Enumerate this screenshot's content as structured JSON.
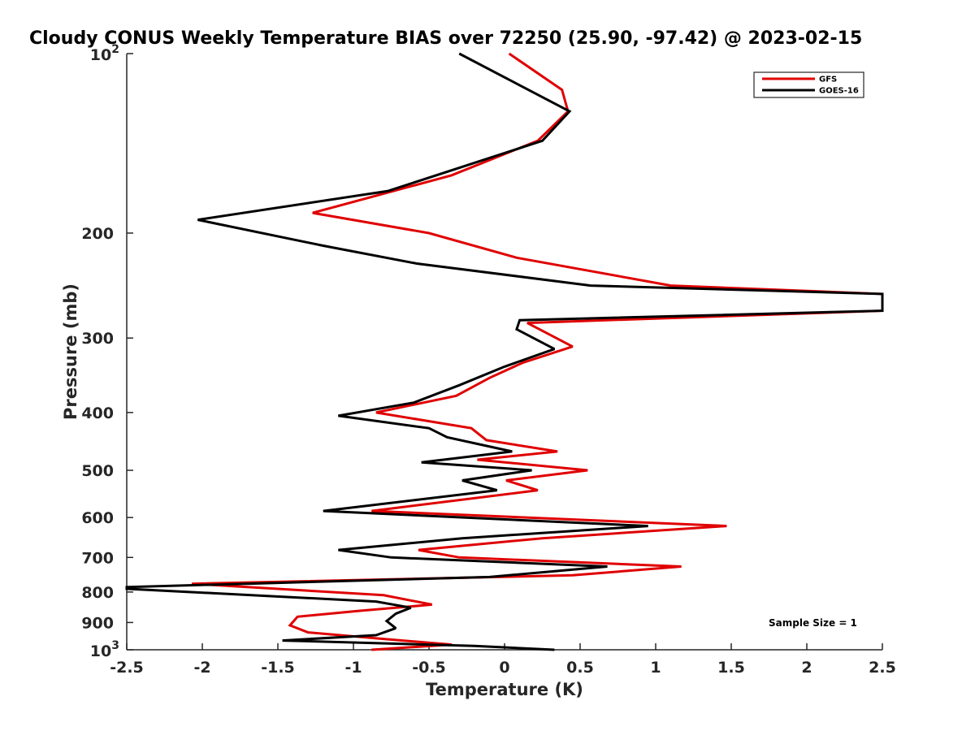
{
  "chart_data": {
    "type": "line",
    "title": "Cloudy CONUS Weekly Temperature BIAS over 72250 (25.90, -97.42) @ 2023-02-15",
    "xlabel": "Temperature (K)",
    "ylabel": "Pressure (mb)",
    "xlim": [
      -2.5,
      2.5
    ],
    "ylim": [
      100,
      1000
    ],
    "y_scale": "log",
    "y_reversed": true,
    "grid": false,
    "legend_position": "top-right",
    "x_ticks": [
      "-2.5",
      "-2",
      "-1.5",
      "-1",
      "-0.5",
      "0",
      "0.5",
      "1",
      "1.5",
      "2",
      "2.5"
    ],
    "y_ticks": [
      {
        "value": 100,
        "base": "10",
        "exp": "2"
      },
      {
        "value": 200,
        "base": "200",
        "exp": ""
      },
      {
        "value": 300,
        "base": "300",
        "exp": ""
      },
      {
        "value": 400,
        "base": "400",
        "exp": ""
      },
      {
        "value": 500,
        "base": "500",
        "exp": ""
      },
      {
        "value": 600,
        "base": "600",
        "exp": ""
      },
      {
        "value": 700,
        "base": "700",
        "exp": ""
      },
      {
        "value": 800,
        "base": "800",
        "exp": ""
      },
      {
        "value": 900,
        "base": "900",
        "exp": ""
      },
      {
        "value": 1000,
        "base": "10",
        "exp": "3"
      }
    ],
    "annotation": "Sample Size = 1",
    "series": [
      {
        "name": "GFS",
        "color": "#e00000",
        "points": [
          [
            0.03,
            100
          ],
          [
            0.38,
            115
          ],
          [
            0.42,
            125
          ],
          [
            0.22,
            140
          ],
          [
            -0.35,
            160
          ],
          [
            -1.27,
            185
          ],
          [
            -0.5,
            200
          ],
          [
            0.08,
            220
          ],
          [
            1.1,
            245
          ],
          [
            2.5,
            253
          ],
          [
            2.5,
            270
          ],
          [
            0.15,
            283
          ],
          [
            0.45,
            310
          ],
          [
            0.12,
            330
          ],
          [
            -0.1,
            350
          ],
          [
            -0.32,
            375
          ],
          [
            -0.85,
            400
          ],
          [
            -0.22,
            425
          ],
          [
            -0.12,
            445
          ],
          [
            0.35,
            465
          ],
          [
            -0.18,
            480
          ],
          [
            0.55,
            500
          ],
          [
            0.01,
            520
          ],
          [
            0.22,
            540
          ],
          [
            -0.88,
            585
          ],
          [
            1.47,
            620
          ],
          [
            0.25,
            650
          ],
          [
            -0.57,
            680
          ],
          [
            -0.3,
            700
          ],
          [
            1.17,
            725
          ],
          [
            0.45,
            750
          ],
          [
            -2.07,
            775
          ],
          [
            -0.8,
            810
          ],
          [
            -0.48,
            840
          ],
          [
            -0.95,
            860
          ],
          [
            -1.37,
            880
          ],
          [
            -1.42,
            910
          ],
          [
            -1.3,
            935
          ],
          [
            -0.78,
            960
          ],
          [
            -0.35,
            980
          ],
          [
            -0.88,
            1000
          ]
        ]
      },
      {
        "name": "GOES-16",
        "color": "#000000",
        "points": [
          [
            -0.3,
            100
          ],
          [
            0.43,
            125
          ],
          [
            0.25,
            140
          ],
          [
            -0.77,
            170
          ],
          [
            -2.03,
            190
          ],
          [
            -1.2,
            210
          ],
          [
            -0.58,
            225
          ],
          [
            0.57,
            245
          ],
          [
            2.5,
            253
          ],
          [
            2.5,
            270
          ],
          [
            0.1,
            280
          ],
          [
            0.08,
            290
          ],
          [
            0.33,
            313
          ],
          [
            0.0,
            335
          ],
          [
            -0.3,
            360
          ],
          [
            -0.6,
            385
          ],
          [
            -1.1,
            405
          ],
          [
            -0.5,
            425
          ],
          [
            -0.38,
            440
          ],
          [
            0.05,
            465
          ],
          [
            -0.55,
            485
          ],
          [
            0.18,
            500
          ],
          [
            -0.28,
            520
          ],
          [
            -0.05,
            540
          ],
          [
            -1.2,
            585
          ],
          [
            0.95,
            620
          ],
          [
            -0.28,
            650
          ],
          [
            -1.1,
            680
          ],
          [
            -0.75,
            700
          ],
          [
            0.68,
            725
          ],
          [
            -0.1,
            755
          ],
          [
            -2.5,
            785
          ],
          [
            -2.5,
            790
          ],
          [
            -0.85,
            830
          ],
          [
            -0.62,
            850
          ],
          [
            -0.72,
            870
          ],
          [
            -0.78,
            895
          ],
          [
            -0.72,
            920
          ],
          [
            -0.85,
            945
          ],
          [
            -1.47,
            965
          ],
          [
            -0.2,
            985
          ],
          [
            0.33,
            1000
          ]
        ]
      }
    ]
  }
}
